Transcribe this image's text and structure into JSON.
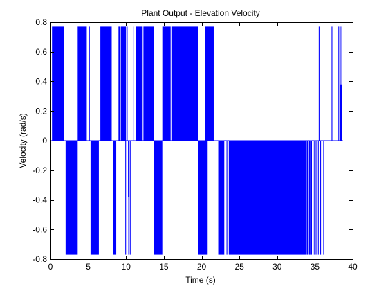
{
  "chart_data": {
    "type": "line",
    "title": "Plant Output - Elevation Velocity",
    "xlabel": "Time (s)",
    "ylabel": "Velocity (rad/s)",
    "xlim": [
      0,
      40
    ],
    "ylim": [
      -0.8,
      0.8
    ],
    "grid": false,
    "legend": "none",
    "x_ticks": [
      0,
      5,
      10,
      15,
      20,
      25,
      30,
      35,
      40
    ],
    "x_tick_labels": [
      "0",
      "5",
      "10",
      "15",
      "20",
      "25",
      "30",
      "35",
      "40"
    ],
    "y_ticks": [
      -0.8,
      -0.6,
      -0.4,
      -0.2,
      0,
      0.2,
      0.4,
      0.6,
      0.8
    ],
    "y_tick_labels": [
      "-0.8",
      "-0.6",
      "-0.4",
      "-0.2",
      "0",
      "0.2",
      "0.4",
      "0.6",
      "0.8"
    ],
    "series": [
      {
        "color": "#0000ff",
        "level": 0.77,
        "positive_bands": [
          [
            0.2,
            1.8
          ],
          [
            3.6,
            4.8
          ],
          [
            5.1,
            5.2
          ],
          [
            6.6,
            8.1
          ],
          [
            9.0,
            9.2
          ],
          [
            9.3,
            10.0
          ],
          [
            10.1,
            10.2
          ],
          [
            10.9,
            11.0
          ],
          [
            11.3,
            12.2
          ],
          [
            12.3,
            13.7
          ],
          [
            14.8,
            15.9
          ],
          [
            16.0,
            19.5
          ],
          [
            20.5,
            21.6
          ],
          [
            35.5,
            35.6
          ],
          [
            37.2,
            37.3
          ],
          [
            38.1,
            38.2
          ],
          [
            38.3,
            38.4
          ],
          [
            38.5,
            38.6
          ]
        ],
        "positive_partial": [
          {
            "x": 38.45,
            "top": 0.38
          }
        ],
        "negative_bands": [
          [
            2.0,
            3.6
          ],
          [
            5.3,
            6.4
          ],
          [
            8.3,
            8.7
          ],
          [
            9.9,
            10.0
          ],
          [
            10.3,
            10.4
          ],
          [
            10.5,
            10.6
          ],
          [
            13.7,
            14.8
          ],
          [
            19.5,
            20.8
          ],
          [
            22.2,
            23.0
          ],
          [
            23.3,
            23.4
          ],
          [
            23.6,
            33.8
          ],
          [
            33.9,
            34.1
          ],
          [
            34.2,
            34.4
          ],
          [
            34.5,
            34.6
          ],
          [
            34.7,
            34.8
          ],
          [
            34.9,
            35.0
          ],
          [
            35.1,
            35.2
          ],
          [
            35.4,
            35.5
          ],
          [
            35.7,
            35.8
          ],
          [
            36.1,
            36.2
          ]
        ],
        "negative_partial": [
          {
            "x": 10.35,
            "bottom": -0.38
          }
        ]
      }
    ]
  }
}
